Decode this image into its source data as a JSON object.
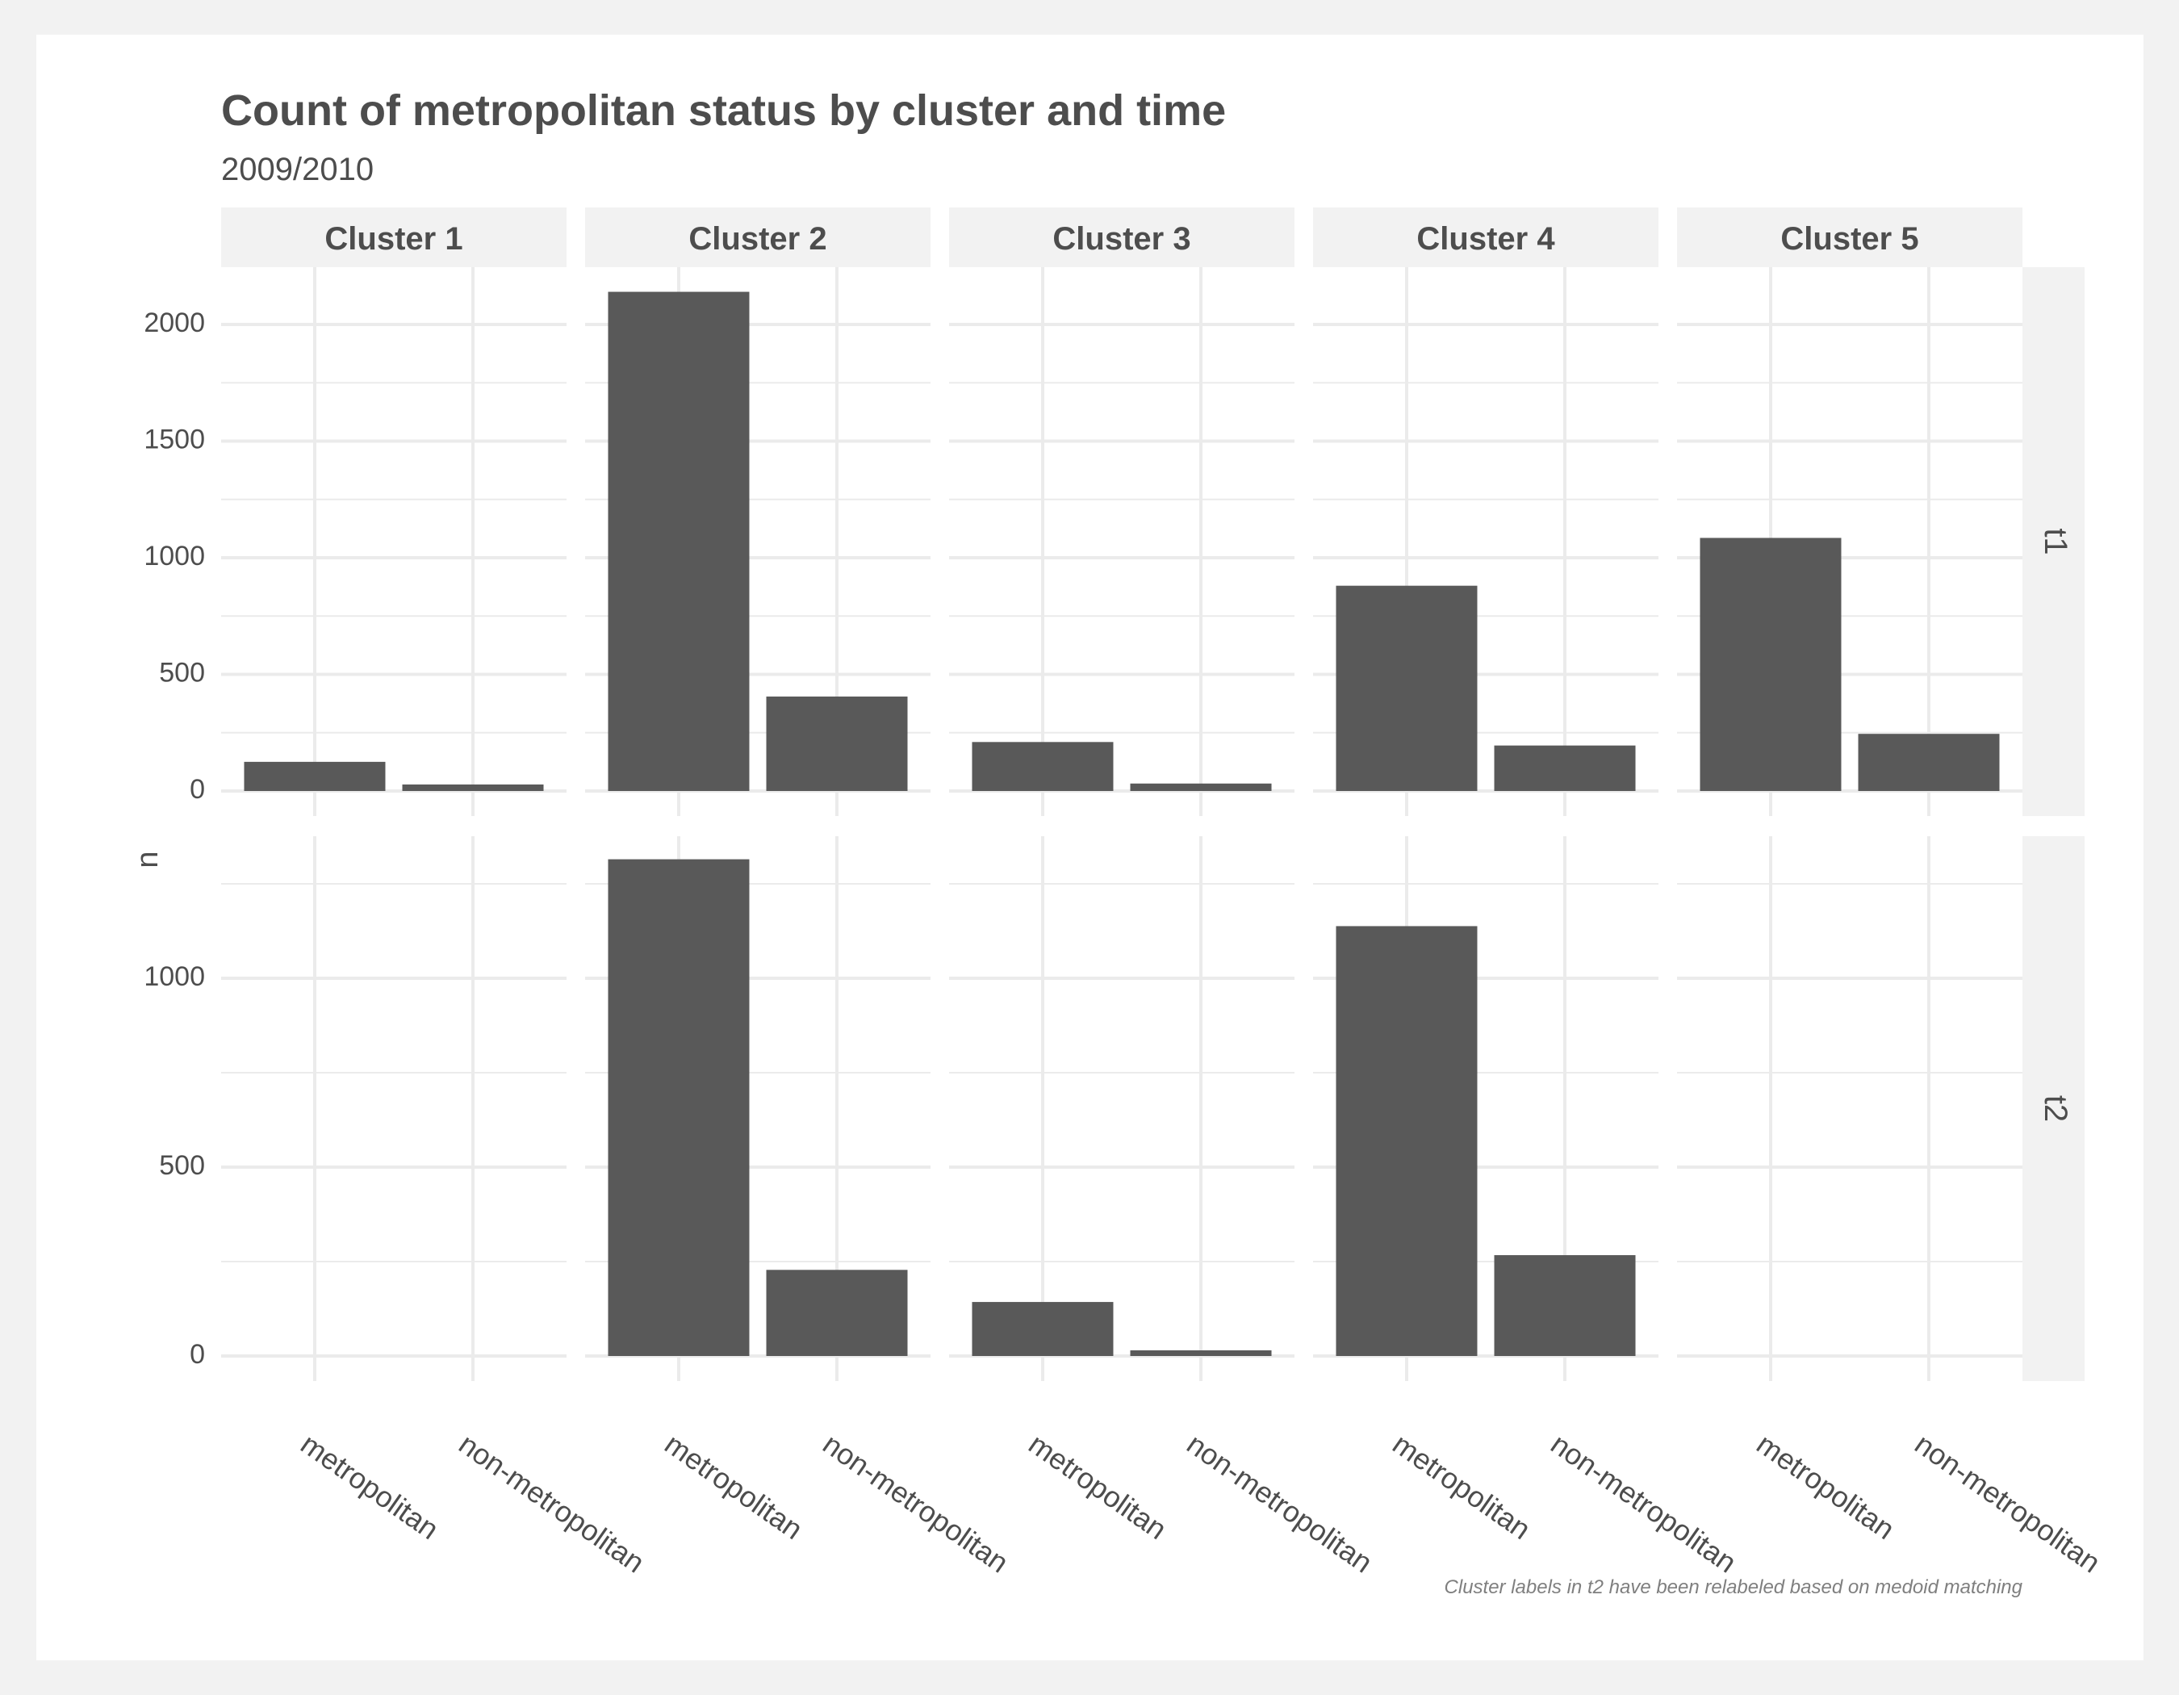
{
  "chart_data": {
    "type": "bar",
    "title": "Count of metropolitan status by cluster and time",
    "subtitle": "2009/2010",
    "ylabel": "n",
    "xlabel": "",
    "caption": "Cluster labels in t2 have been relabeled based on medoid matching",
    "categories": [
      "metropolitan",
      "non-metropolitan"
    ],
    "columns": [
      "Cluster 1",
      "Cluster 2",
      "Cluster 3",
      "Cluster 4",
      "Cluster 5"
    ],
    "rows": [
      {
        "label": "t1",
        "ylim": [
          0,
          2240
        ],
        "yticks": [
          0,
          500,
          1000,
          1500,
          2000
        ],
        "values": [
          [
            125,
            28
          ],
          [
            2140,
            405
          ],
          [
            210,
            32
          ],
          [
            880,
            195
          ],
          [
            1085,
            245
          ]
        ]
      },
      {
        "label": "t2",
        "ylim": [
          0,
          1380
        ],
        "yticks": [
          0,
          500,
          1000
        ],
        "values": [
          [
            null,
            null
          ],
          [
            1315,
            228
          ],
          [
            143,
            15
          ],
          [
            1138,
            267
          ],
          [
            null,
            null
          ]
        ]
      }
    ],
    "grid": true,
    "bar_color": "#595959",
    "strip_color": "#f2f2f2",
    "text_color": "#4d4d4d"
  }
}
